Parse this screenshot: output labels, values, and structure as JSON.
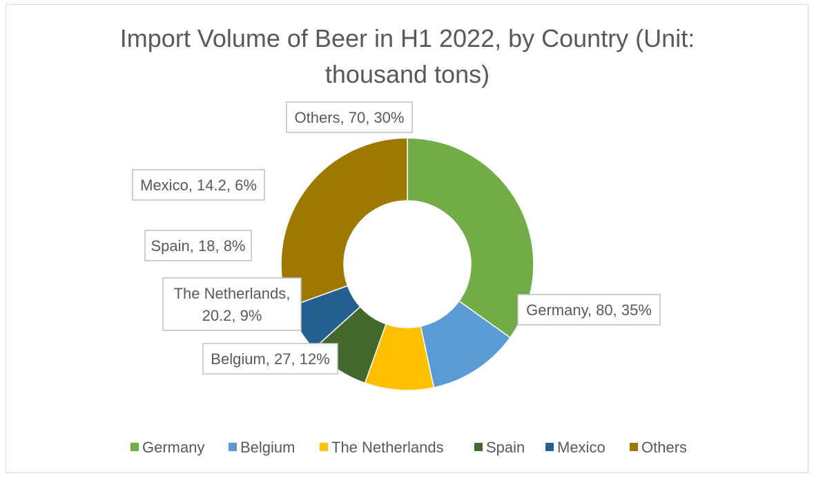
{
  "chart_data": {
    "type": "pie",
    "variant": "doughnut",
    "title": "Import Volume of Beer in H1 2022, by Country (Unit: thousand tons)",
    "categories": [
      "Germany",
      "Belgium",
      "The Netherlands",
      "Spain",
      "Mexico",
      "Others"
    ],
    "values": [
      80,
      27,
      20.2,
      18,
      14.2,
      70
    ],
    "percentages": [
      "35%",
      "12%",
      "9%",
      "8%",
      "6%",
      "30%"
    ],
    "data_labels": [
      [
        "Germany, 80, 35%"
      ],
      [
        "Belgium, 27, 12%"
      ],
      [
        "The Netherlands,",
        "20.2, 9%"
      ],
      [
        "Spain, 18, 8%"
      ],
      [
        "Mexico, 14.2, 6%"
      ],
      [
        "Others, 70, 30%"
      ]
    ],
    "colors": [
      "#70ad47",
      "#5b9bd5",
      "#ffc000",
      "#43682b",
      "#255e91",
      "#9e7800"
    ],
    "legend": {
      "placement": "bottom",
      "entries": [
        "Germany",
        "Belgium",
        "The Netherlands",
        "Spain",
        "Mexico",
        "Others"
      ]
    }
  }
}
